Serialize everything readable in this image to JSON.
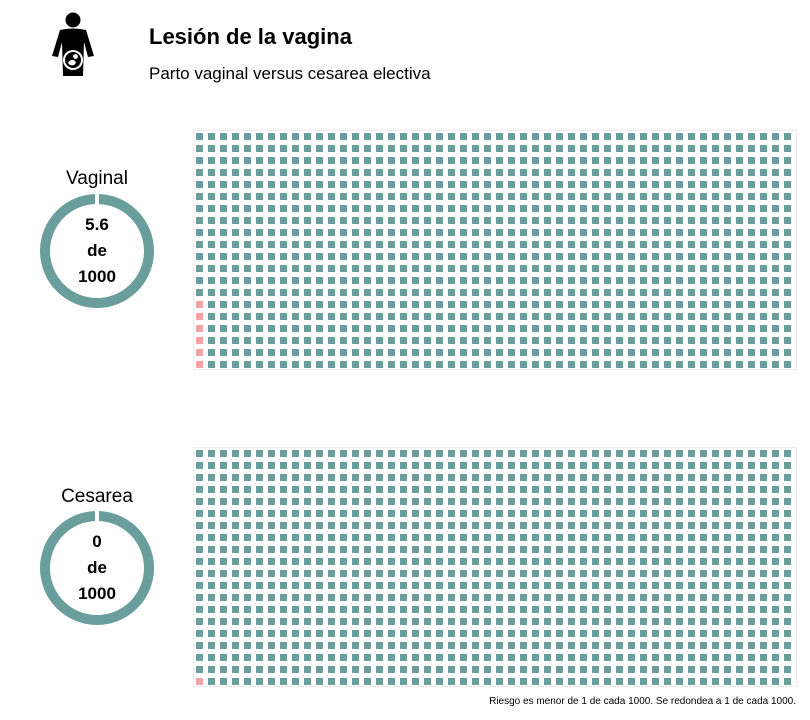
{
  "header": {
    "title": "Lesión de la vagina",
    "subtitle": "Parto vaginal versus cesarea electiva",
    "icon": "pregnant-woman-icon"
  },
  "colors": {
    "safe": "#6a9e9d",
    "affected": "#f4a3a8",
    "donut": "#6a9e9d"
  },
  "chart_data": [
    {
      "type": "waffle",
      "name": "Vaginal",
      "value": "5.6",
      "of_label": "de",
      "total_label": "1000",
      "total": 1000,
      "affected": 6,
      "columns": 50,
      "rows": 20
    },
    {
      "type": "waffle",
      "name": "Cesarea",
      "value": "0",
      "of_label": "de",
      "total_label": "1000",
      "total": 1000,
      "affected": 1,
      "columns": 50,
      "rows": 20
    }
  ],
  "footnote": "Riesgo es menor de 1 de cada 1000. Se redondea a 1 de cada 1000."
}
